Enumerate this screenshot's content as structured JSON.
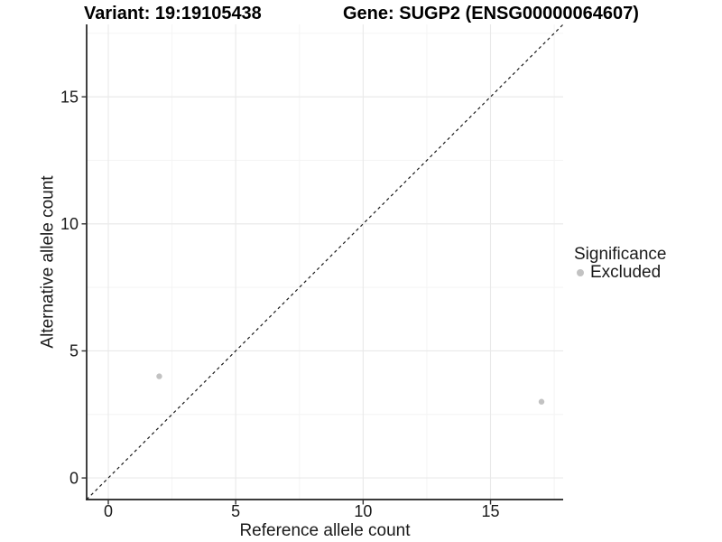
{
  "chart_data": {
    "type": "scatter",
    "titles": {
      "variant": "Variant: 19:19105438",
      "gene": "Gene: SUGP2 (ENSG00000064607)"
    },
    "xlabel": "Reference allele count",
    "ylabel": "Alternative allele count",
    "xlim": [
      -0.85,
      17.85
    ],
    "ylim": [
      -0.85,
      17.85
    ],
    "xticks": [
      0,
      5,
      10,
      15
    ],
    "yticks": [
      0,
      5,
      10,
      15
    ],
    "minor_gridlines_x": [
      2.5,
      7.5,
      12.5,
      17.5
    ],
    "minor_gridlines_y": [
      2.5,
      7.5,
      12.5,
      17.5
    ],
    "grid": "major-and-minor",
    "reference_line": {
      "slope": 1,
      "intercept": 0,
      "style": "dashed"
    },
    "series": [
      {
        "name": "Excluded",
        "color": "#c2c2c2",
        "points": [
          {
            "x": 2,
            "y": 4
          },
          {
            "x": 17,
            "y": 3
          }
        ]
      }
    ],
    "legend": {
      "title": "Significance",
      "position": "right",
      "items": [
        {
          "label": "Excluded",
          "color": "#c2c2c2",
          "marker": "circle"
        }
      ]
    }
  },
  "colors": {
    "background": "#ffffff",
    "grid_major": "#e9e9e9",
    "grid_minor": "#f4f4f4",
    "axis_line": "#1f1f1f",
    "tick_mark": "#333333",
    "text": "#1a1a1a",
    "title_text": "#000000",
    "reference_line": "#1a1a1a",
    "point": "#c2c2c2"
  }
}
